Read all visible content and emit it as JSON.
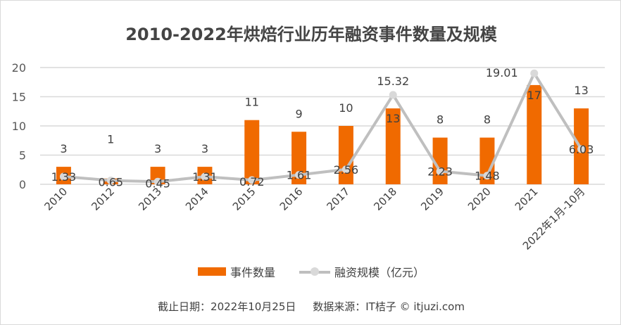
{
  "chart_data": {
    "type": "bar+line",
    "title": "2010-2022年烘焙行业历年融资事件数量及规模",
    "categories": [
      "2010",
      "2012",
      "2013",
      "2014",
      "2015",
      "2016",
      "2017",
      "2018",
      "2019",
      "2020",
      "2021",
      "2022年1月-10月"
    ],
    "series": [
      {
        "name": "事件数量",
        "type": "bar",
        "color": "#f06a00",
        "values": [
          3,
          1,
          3,
          3,
          11,
          9,
          10,
          13,
          8,
          8,
          17,
          13
        ]
      },
      {
        "name": "融资规模（亿元）",
        "type": "line",
        "color": "#bfbfbf",
        "values": [
          1.33,
          0.65,
          0.45,
          1.31,
          0.72,
          1.61,
          2.56,
          15.32,
          2.23,
          1.48,
          19.01,
          6.03
        ]
      }
    ],
    "ylim": [
      0,
      20
    ],
    "yticks": [
      "0",
      "5",
      "10",
      "15",
      "20"
    ],
    "grid": true,
    "legend": "bottom"
  },
  "footer": "截止日期：2022年10月25日     数据来源：IT桔子 © itjuzi.com"
}
